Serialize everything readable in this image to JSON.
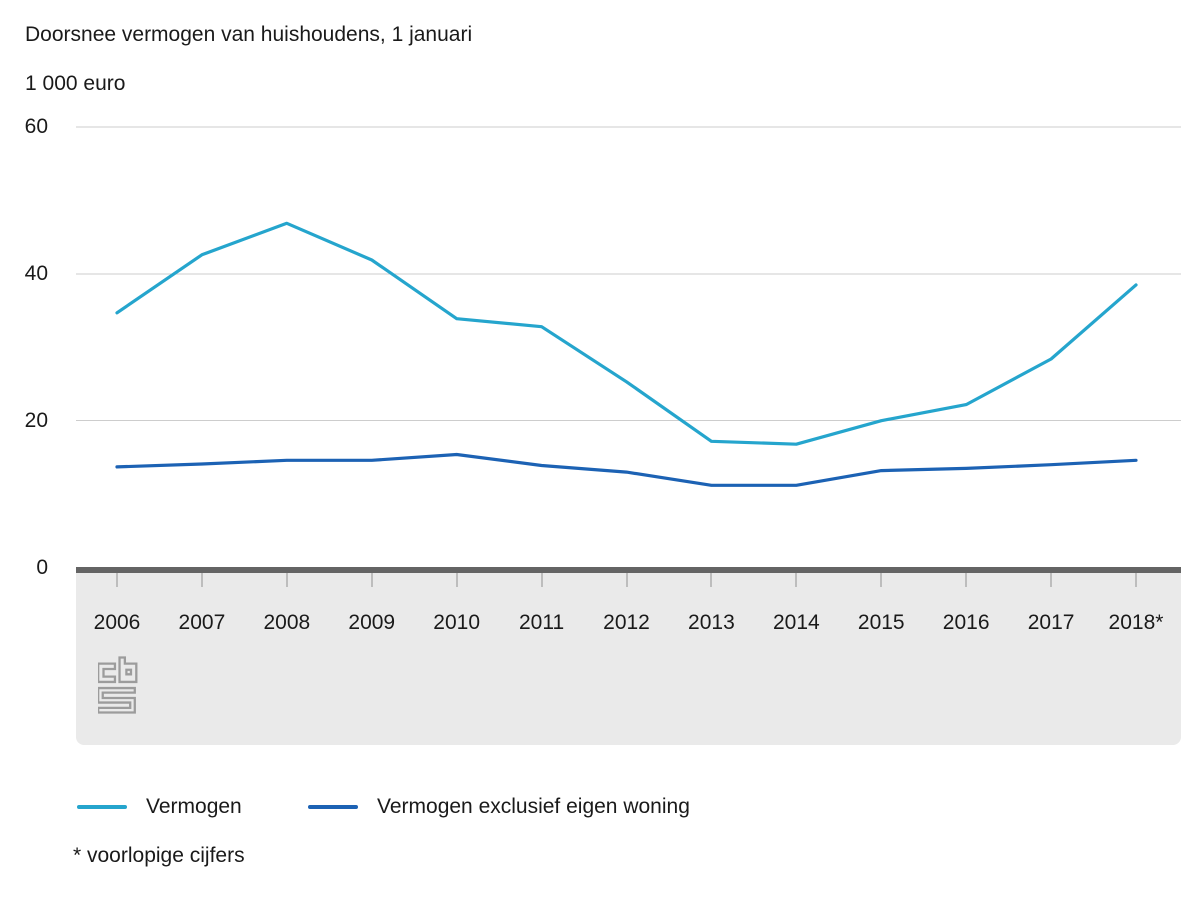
{
  "title": "Doorsnee vermogen van huishoudens, 1 januari",
  "unit_label": "1 000 euro",
  "footnote": "* voorlopige cijfers",
  "logo_name": "cbs-logo",
  "colors": {
    "series_vermogen": "#25a5cd",
    "series_exclusief": "#1c62b4",
    "gridline": "#cdcdcd",
    "zero_axis_bar": "#646464",
    "axis_band": "#eaeaea",
    "tick": "#bdbdbd",
    "text": "#1a1a1a",
    "logo_gray": "#9c9c9c"
  },
  "chart_data": {
    "type": "line",
    "title": "Doorsnee vermogen van huishoudens, 1 januari",
    "ylabel": "1 000 euro",
    "xlabel": "",
    "grid": true,
    "legend_position": "bottom",
    "ylim": [
      0,
      60
    ],
    "yticks": [
      0,
      20,
      40,
      60
    ],
    "categories": [
      "2006",
      "2007",
      "2008",
      "2009",
      "2010",
      "2011",
      "2012",
      "2013",
      "2014",
      "2015",
      "2016",
      "2017",
      "2018*"
    ],
    "series": [
      {
        "name": "Vermogen",
        "color": "#25a5cd",
        "values": [
          34.7,
          42.6,
          46.9,
          41.9,
          33.9,
          32.8,
          25.3,
          17.2,
          16.8,
          20.0,
          22.2,
          28.4,
          38.5
        ]
      },
      {
        "name": "Vermogen exclusief eigen woning",
        "color": "#1c62b4",
        "values": [
          13.7,
          14.1,
          14.6,
          14.6,
          15.4,
          13.9,
          13.0,
          11.2,
          11.2,
          13.2,
          13.5,
          14.0,
          14.6
        ]
      }
    ]
  },
  "legend": {
    "items": [
      {
        "label": "Vermogen",
        "color": "#25a5cd"
      },
      {
        "label": "Vermogen exclusief eigen woning",
        "color": "#1c62b4"
      }
    ]
  }
}
